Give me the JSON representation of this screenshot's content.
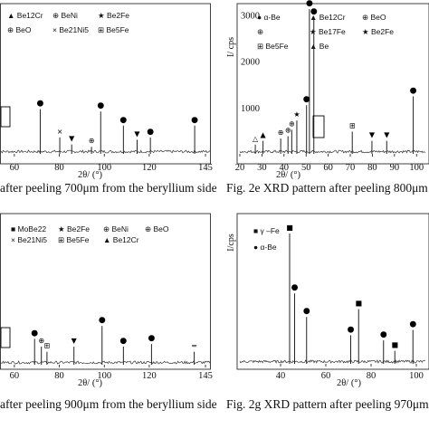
{
  "chart_data": [
    {
      "type": "line",
      "caption": "after peeling 700μm from the beryllium side",
      "xlabel": "2θ/ (°)",
      "ylabel": "",
      "xlim": [
        52,
        147
      ],
      "xticks": [
        "60",
        "80",
        "100",
        "120",
        "145"
      ],
      "xtick_values": [
        60,
        80,
        100,
        120,
        145
      ],
      "legend": [
        {
          "glyph": "▲",
          "label": "Be12Cr"
        },
        {
          "glyph": "⊕",
          "label": "BeNi"
        },
        {
          "glyph": "★",
          "label": "Be2Fe"
        },
        {
          "glyph": "⊕",
          "label": "BeO"
        },
        {
          "glyph": "×",
          "label": "Be21Ni5"
        },
        {
          "glyph": "⊞",
          "label": "Be5Fe"
        }
      ],
      "peaks": [
        {
          "x": 71.5,
          "y": 0.38,
          "marker": "●"
        },
        {
          "x": 80.2,
          "y": 0.14,
          "marker": "×"
        },
        {
          "x": 85.5,
          "y": 0.08,
          "marker": "▼"
        },
        {
          "x": 94.3,
          "y": 0.06,
          "marker": "⊕"
        },
        {
          "x": 98.4,
          "y": 0.36,
          "marker": "●"
        },
        {
          "x": 108.5,
          "y": 0.24,
          "marker": "●"
        },
        {
          "x": 114.6,
          "y": 0.12,
          "marker": "▼"
        },
        {
          "x": 120.5,
          "y": 0.14,
          "marker": "●"
        },
        {
          "x": 140.2,
          "y": 0.24,
          "marker": "●"
        }
      ]
    },
    {
      "type": "line",
      "caption": "Fig. 2e XRD pattern after peeling 800μm fr",
      "xlabel": "2θ/ (°)",
      "ylabel": "I/ cps",
      "xlim": [
        20,
        104
      ],
      "ylim": [
        0,
        3200
      ],
      "xticks": [
        "20",
        "30",
        "40",
        "50",
        "60",
        "70",
        "80",
        "90",
        "100"
      ],
      "xtick_values": [
        20,
        30,
        40,
        50,
        60,
        70,
        80,
        90,
        100
      ],
      "yticks": [
        "1000",
        "2000",
        "3000"
      ],
      "ytick_values": [
        1000,
        2000,
        3000
      ],
      "legend": [
        {
          "glyph": "●",
          "label": "α-Be"
        },
        {
          "glyph": "▲",
          "label": "Be12Cr"
        },
        {
          "glyph": "⊕",
          "label": "BeO"
        },
        {
          "glyph": "⊕",
          "label": ""
        },
        {
          "glyph": "★",
          "label": "Be17Fe"
        },
        {
          "glyph": "★",
          "label": "Be2Fe"
        },
        {
          "glyph": "⊞",
          "label": "Be5Fe"
        },
        {
          "glyph": "▲",
          "label": "Be"
        }
      ],
      "peaks": [
        {
          "x": 51.5,
          "y": 3120,
          "marker": "●"
        },
        {
          "x": 53.5,
          "y": 2950,
          "marker": "●"
        },
        {
          "x": 50.2,
          "y": 1050,
          "marker": "●"
        },
        {
          "x": 45.8,
          "y": 720,
          "marker": "★"
        },
        {
          "x": 43.5,
          "y": 520,
          "marker": "⊕"
        },
        {
          "x": 41.8,
          "y": 380,
          "marker": "⊕"
        },
        {
          "x": 38.5,
          "y": 330,
          "marker": "⊕"
        },
        {
          "x": 30.5,
          "y": 280,
          "marker": "▲"
        },
        {
          "x": 27.0,
          "y": 200,
          "marker": "△"
        },
        {
          "x": 70.9,
          "y": 480,
          "marker": "⊞"
        },
        {
          "x": 79.8,
          "y": 280,
          "marker": "▼"
        },
        {
          "x": 86.5,
          "y": 280,
          "marker": "▼"
        },
        {
          "x": 98.5,
          "y": 1240,
          "marker": "●"
        }
      ]
    },
    {
      "type": "line",
      "caption": "after peeling 900μm from the beryllium side",
      "xlabel": "2θ/ (°)",
      "ylabel": "",
      "xlim": [
        52,
        147
      ],
      "xticks": [
        "60",
        "80",
        "100",
        "120",
        "145"
      ],
      "xtick_values": [
        60,
        80,
        100,
        120,
        145
      ],
      "legend": [
        {
          "glyph": "■",
          "label": "MoBe22"
        },
        {
          "glyph": "★",
          "label": "Be2Fe"
        },
        {
          "glyph": "⊕",
          "label": "BeNi"
        },
        {
          "glyph": "⊕",
          "label": "BeO"
        },
        {
          "glyph": "×",
          "label": "Be21Ni5"
        },
        {
          "glyph": "⊞",
          "label": "Be5Fe"
        },
        {
          "glyph": "▲",
          "label": "Be12Cr"
        }
      ],
      "peaks": [
        {
          "x": 69.0,
          "y": 0.2,
          "marker": "●"
        },
        {
          "x": 72.0,
          "y": 0.14,
          "marker": "⊕"
        },
        {
          "x": 74.5,
          "y": 0.1,
          "marker": "⊞"
        },
        {
          "x": 86.5,
          "y": 0.14,
          "marker": "▼"
        },
        {
          "x": 99.0,
          "y": 0.3,
          "marker": "●"
        },
        {
          "x": 108.5,
          "y": 0.14,
          "marker": "●"
        },
        {
          "x": 121.0,
          "y": 0.16,
          "marker": "●"
        },
        {
          "x": 140.0,
          "y": 0.1,
          "marker": "="
        }
      ]
    },
    {
      "type": "line",
      "caption": "Fig. 2g XRD pattern after peeling 970μm",
      "xlabel": "2θ/ (°)",
      "ylabel": "I/cps",
      "xlim": [
        22,
        104
      ],
      "xticks": [
        "40",
        "60",
        "80",
        "100"
      ],
      "xtick_values": [
        40,
        60,
        80,
        100
      ],
      "legend": [
        {
          "glyph": "■",
          "label": "γ –Fe"
        },
        {
          "glyph": "●",
          "label": "α-Be"
        }
      ],
      "peaks": [
        {
          "x": 44.0,
          "y": 1.0,
          "marker": "■"
        },
        {
          "x": 46.2,
          "y": 0.54,
          "marker": "●"
        },
        {
          "x": 51.5,
          "y": 0.36,
          "marker": "●"
        },
        {
          "x": 74.5,
          "y": 0.42,
          "marker": "■"
        },
        {
          "x": 71.0,
          "y": 0.22,
          "marker": "●"
        },
        {
          "x": 85.5,
          "y": 0.18,
          "marker": "●"
        },
        {
          "x": 90.5,
          "y": 0.1,
          "marker": "■"
        },
        {
          "x": 98.5,
          "y": 0.26,
          "marker": "●"
        }
      ]
    }
  ]
}
